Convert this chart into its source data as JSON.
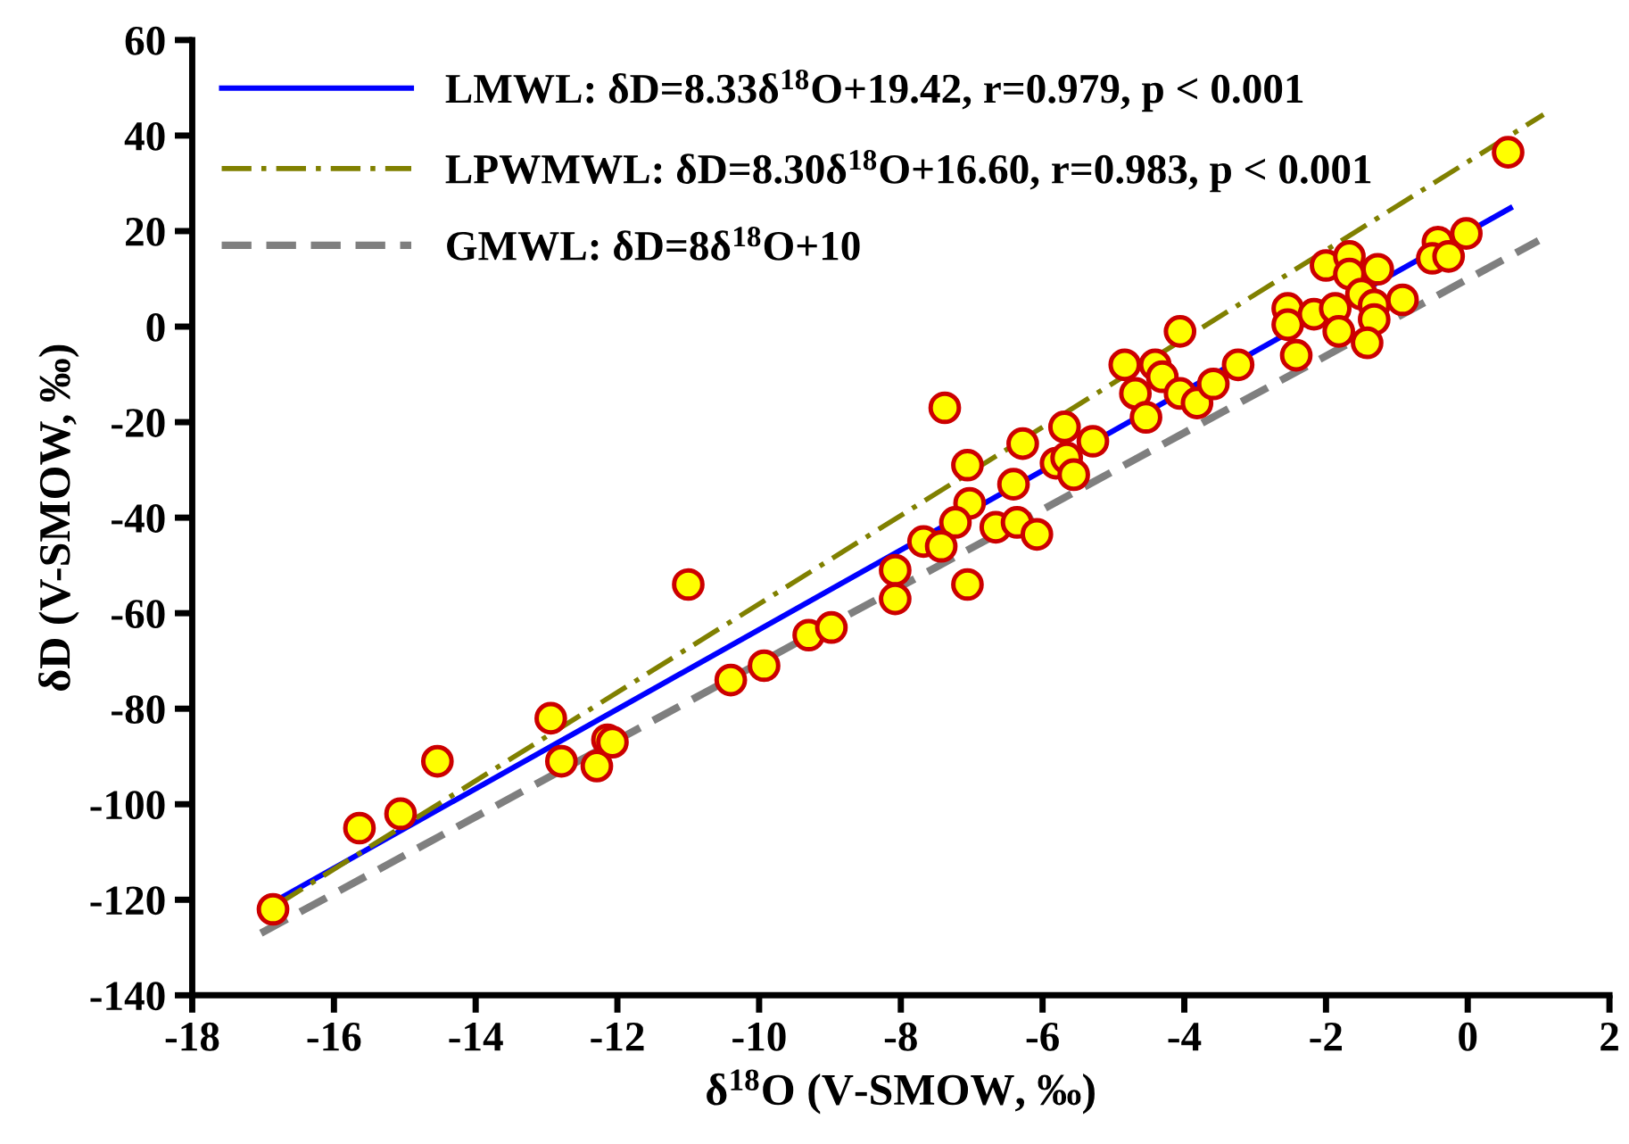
{
  "chart_data": {
    "type": "scatter",
    "xlabel": "δ$^{18}$O (V-SMOW, ‰)",
    "ylabel": "δD (V-SMOW, ‰)",
    "xlim": [
      -18,
      2
    ],
    "xticks": [
      -18,
      -16,
      -14,
      -12,
      -10,
      -8,
      -6,
      -4,
      -2,
      0,
      2
    ],
    "ylim": [
      -140,
      60
    ],
    "yticks": [
      -140,
      -120,
      -100,
      -80,
      -60,
      -40,
      -20,
      0,
      20,
      40,
      60
    ],
    "grid": false,
    "legend": "top left",
    "series": [
      {
        "name": "LMWL: δD=8.33δ$^{18}$O+19.42, r=0.979, p < 0.001",
        "type": "line",
        "color": "#0000ff",
        "line_style": "solid",
        "marker": "none",
        "x": [
          -16.83,
          0.6
        ],
        "values": [
          -120.3,
          24.8
        ]
      },
      {
        "name": "LPWMWL: δD=8.30δ$^{18}$O+16.60, r=0.983, p < 0.001",
        "type": "line",
        "color": "#808000",
        "line_style": "dashdot",
        "marker": "none",
        "x": [
          -16.8,
          1.07
        ],
        "values": [
          -121,
          44.4
        ]
      },
      {
        "name": "GMWL: δD=8δ$^{18}$O+10",
        "type": "line",
        "color": "#7f7f7f",
        "line_style": "dashed",
        "marker": "none",
        "x": [
          -17.03,
          1.0
        ],
        "values": [
          -127,
          18
        ]
      },
      {
        "color": "#ffff00",
        "marker": "circle",
        "x": [
          -16.86,
          -15.64,
          -15.06,
          -14.54,
          -12.94,
          -12.79,
          -12.29,
          -12.14,
          -12.07,
          -11.0,
          -10.4,
          -9.93,
          -9.3,
          -8.98,
          -8.08,
          -8.08,
          -7.38,
          -7.06,
          -7.06,
          -7.03,
          -7.23,
          -7.68,
          -7.43,
          -6.66,
          -6.36,
          -6.08,
          -6.41,
          -6.28,
          -5.81,
          -5.66,
          -5.69,
          -5.56,
          -5.29,
          -4.84,
          -4.69,
          -4.54,
          -4.41,
          -4.31,
          -4.06,
          -4.06,
          -3.82,
          -3.59,
          0.57,
          -3.24,
          -2.42,
          -2.54,
          -2.54,
          -2.17,
          -1.87,
          -1.82,
          -2.0,
          -1.67,
          -1.67,
          -1.27,
          -1.5,
          -1.32,
          -1.32,
          -1.42,
          -0.92,
          -0.42,
          -0.5,
          -0.27,
          -0.02
        ],
        "values": [
          -122,
          -105,
          -102,
          -91,
          -82,
          -91,
          -92,
          -86.5,
          -87,
          -54,
          -74,
          -71,
          -64.6,
          -63,
          -51,
          -57,
          -17,
          -54,
          -29,
          -37,
          -41,
          -45,
          -46,
          -42,
          -41,
          -43.5,
          -33,
          -24.5,
          -28.6,
          -27.5,
          -21,
          -31,
          -24,
          -8,
          -14,
          -19,
          -8,
          -10.5,
          -1,
          -14,
          -16,
          -12,
          36.5,
          -8,
          -6,
          3.8,
          0.4,
          2.6,
          3.8,
          -1,
          12.8,
          14.7,
          11,
          12,
          6.8,
          4.5,
          1.5,
          -3.4,
          5.6,
          17.7,
          14.3,
          14.7,
          19.5
        ]
      }
    ]
  }
}
